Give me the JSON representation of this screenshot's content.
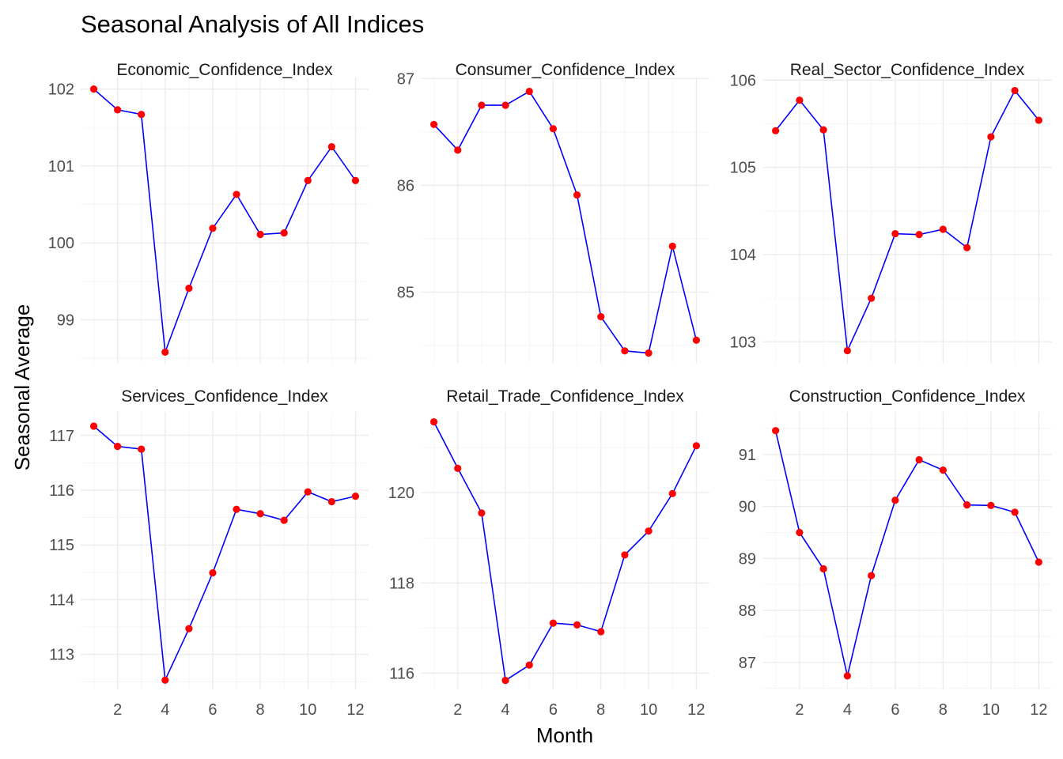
{
  "chart_data": {
    "type": "line",
    "title": "Seasonal Analysis of All Indices",
    "xlabel": "Month",
    "ylabel": "Seasonal Average",
    "x": [
      1,
      2,
      3,
      4,
      5,
      6,
      7,
      8,
      9,
      10,
      11,
      12
    ],
    "xticks": [
      2,
      4,
      6,
      8,
      10,
      12
    ],
    "xlim": [
      0.45,
      12.55
    ],
    "grid": true,
    "line_color": "#0000ff",
    "point_color": "#ff0000",
    "panels": [
      {
        "name": "Economic_Confidence_Index",
        "values": [
          102.0,
          101.73,
          101.67,
          98.58,
          99.41,
          100.19,
          100.63,
          100.11,
          100.13,
          100.81,
          101.25,
          100.81
        ],
        "ylim": [
          98.43,
          102.15
        ],
        "yticks": [
          99,
          100,
          101,
          102
        ]
      },
      {
        "name": "Consumer_Confidence_Index",
        "values": [
          86.57,
          86.33,
          86.75,
          86.75,
          86.88,
          86.53,
          85.91,
          84.77,
          84.45,
          84.43,
          85.43,
          84.55
        ],
        "ylim": [
          84.33,
          87.01
        ],
        "yticks": [
          85,
          86,
          87
        ]
      },
      {
        "name": "Real_Sector_Confidence_Index",
        "values": [
          105.42,
          105.77,
          105.43,
          102.9,
          103.5,
          104.24,
          104.23,
          104.29,
          104.08,
          105.35,
          105.88,
          105.54
        ],
        "ylim": [
          102.75,
          106.03
        ],
        "yticks": [
          103,
          104,
          105,
          106
        ]
      },
      {
        "name": "Services_Confidence_Index",
        "values": [
          117.17,
          116.8,
          116.75,
          112.53,
          113.47,
          114.49,
          115.65,
          115.57,
          115.45,
          115.97,
          115.79,
          115.89
        ],
        "ylim": [
          112.36,
          117.43
        ],
        "yticks": [
          113,
          114,
          115,
          116,
          117
        ]
      },
      {
        "name": "Retail_Trade_Confidence_Index",
        "values": [
          121.57,
          120.54,
          119.55,
          115.84,
          116.18,
          117.11,
          117.07,
          116.92,
          118.62,
          119.15,
          119.98,
          121.04
        ],
        "ylim": [
          115.64,
          121.79
        ],
        "yticks": [
          116,
          118,
          120
        ]
      },
      {
        "name": "Construction_Confidence_Index",
        "values": [
          91.46,
          89.5,
          88.8,
          86.74,
          88.67,
          90.12,
          90.9,
          90.7,
          90.03,
          90.02,
          89.89,
          88.93
        ],
        "ylim": [
          86.48,
          91.82
        ],
        "yticks": [
          87,
          88,
          89,
          90,
          91
        ]
      }
    ]
  }
}
